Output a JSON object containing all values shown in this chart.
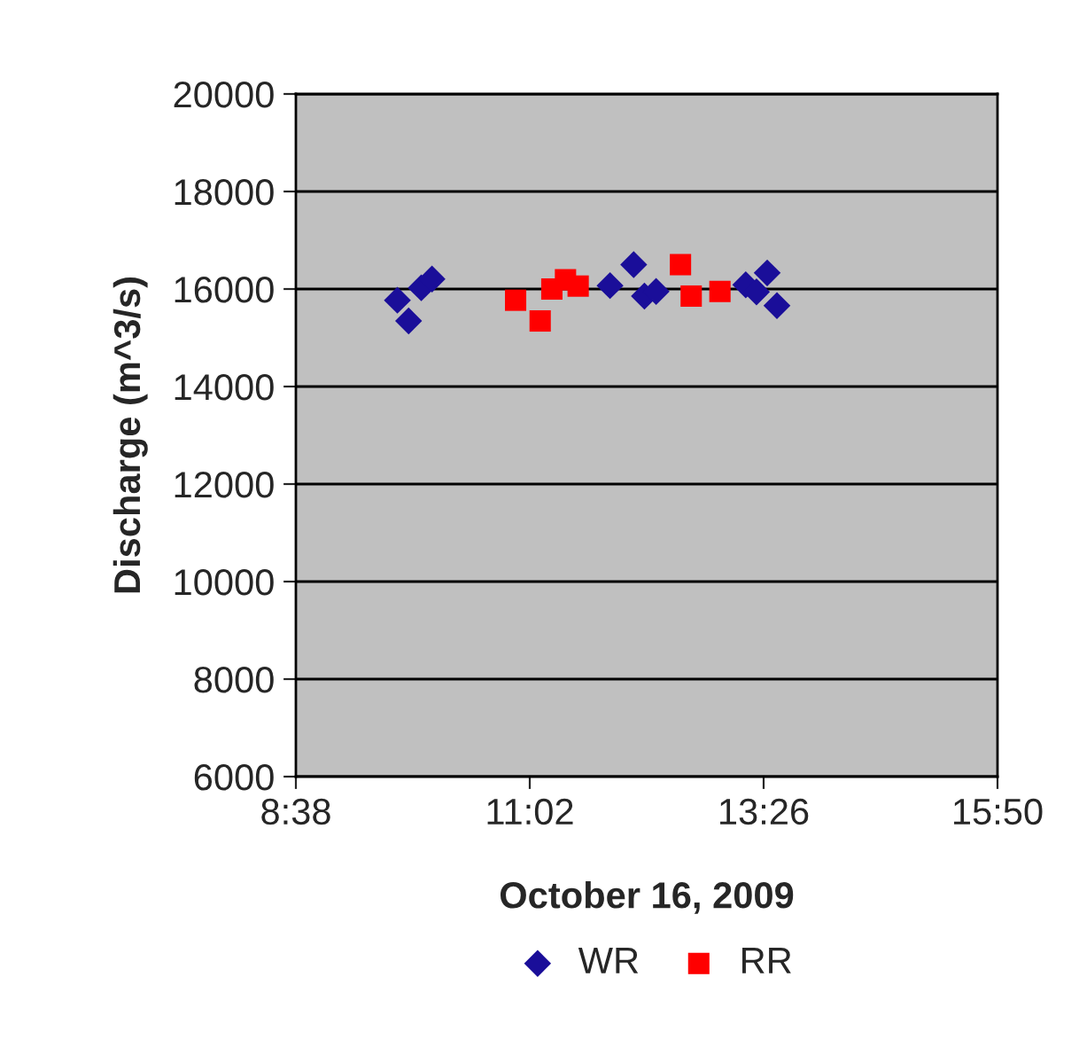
{
  "chart_data": {
    "type": "scatter",
    "xlabel": "October 16, 2009",
    "ylabel": "Discharge (m^3/s)",
    "xlim": [
      8.6333,
      15.8333
    ],
    "xticks": [
      {
        "value": 8.6333,
        "label": "8:38"
      },
      {
        "value": 11.0333,
        "label": "11:02"
      },
      {
        "value": 13.4333,
        "label": "13:26"
      },
      {
        "value": 15.8333,
        "label": "15:50"
      }
    ],
    "ylim": [
      6000,
      20000
    ],
    "yticks": [
      6000,
      8000,
      10000,
      12000,
      14000,
      16000,
      18000,
      20000
    ],
    "grid": "y",
    "legend": "bottom",
    "series": [
      {
        "name": "WR",
        "color": "#1a0e99",
        "marker": "diamond",
        "x": [
          9.675,
          9.79,
          9.92,
          10.03,
          11.857,
          12.1,
          12.21,
          12.33,
          13.25,
          13.36,
          13.47,
          13.57
        ],
        "values": [
          15770,
          15345,
          16025,
          16205,
          16070,
          16500,
          15855,
          15950,
          16085,
          15940,
          16330,
          15660
        ]
      },
      {
        "name": "RR",
        "color": "#ff0000",
        "marker": "square",
        "x": [
          10.888,
          11.14,
          11.26,
          11.4,
          11.53,
          12.58,
          12.69,
          12.985
        ],
        "values": [
          15770,
          15345,
          16000,
          16190,
          16060,
          16500,
          15855,
          15950
        ]
      }
    ]
  }
}
